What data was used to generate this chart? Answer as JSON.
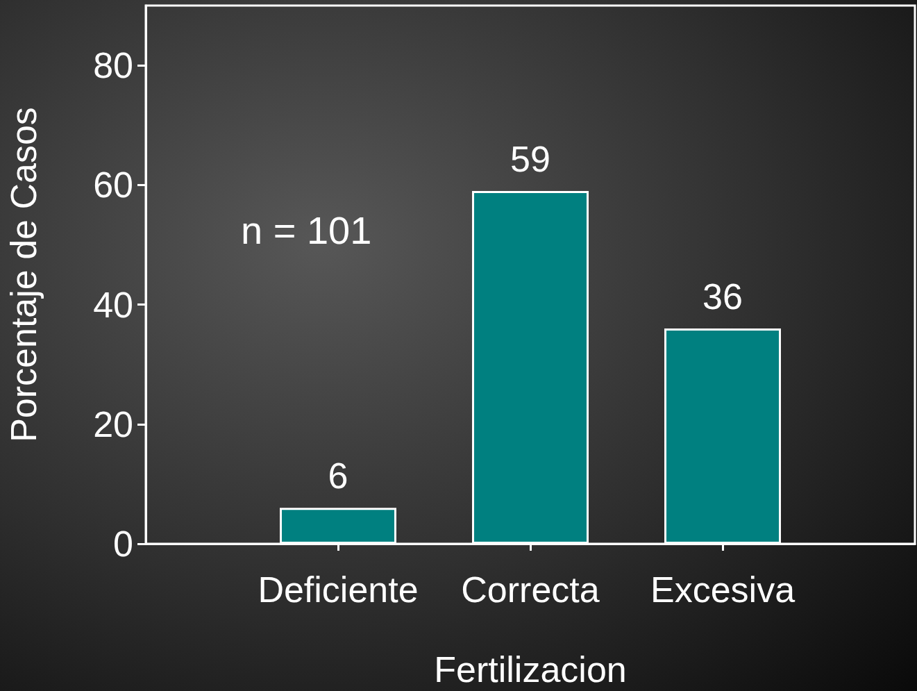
{
  "chart_data": {
    "type": "bar",
    "xlabel": "Fertilizacion",
    "ylabel": "Porcentaje de Casos",
    "categories": [
      null,
      "Deficiente",
      "Correcta",
      "Excesiva",
      null
    ],
    "values": [
      null,
      6,
      59,
      36,
      null
    ],
    "color": "#008080",
    "ylim": [
      0,
      90
    ],
    "yticks": [
      0,
      20,
      40,
      60,
      80
    ],
    "grid": false,
    "data_labels": true,
    "annotations": [
      "n = 101"
    ]
  }
}
